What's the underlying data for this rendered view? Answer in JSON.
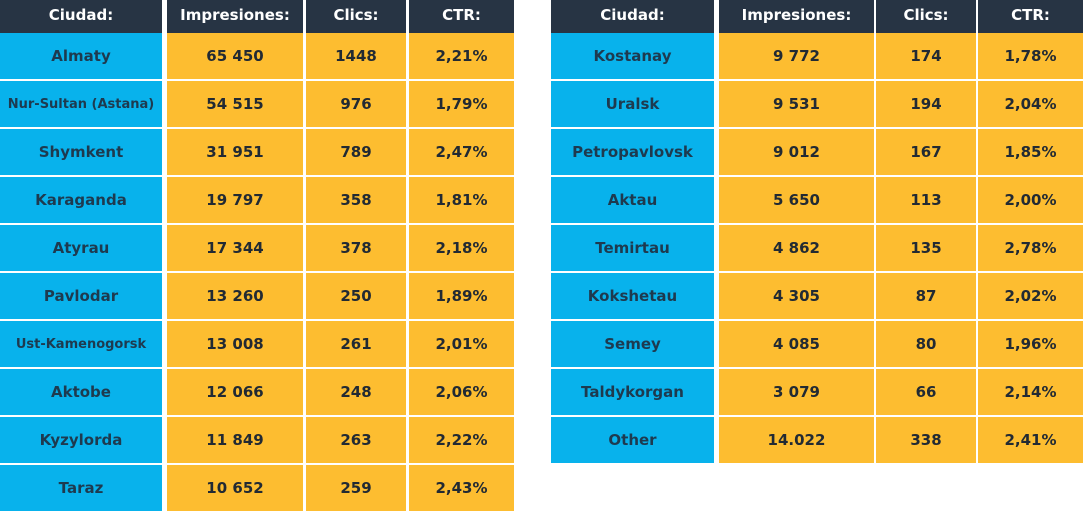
{
  "colors": {
    "header_bg": "#273444",
    "city_bg": "#08b2ec",
    "value_bg": "#fdbd30"
  },
  "table_left": {
    "headers": [
      "Ciudad:",
      "Impresiones:",
      "Clics:",
      "CTR:"
    ],
    "rows": [
      [
        "Almaty",
        "65 450",
        "1448",
        "2,21%"
      ],
      [
        "Nur-Sultan (Astana)",
        "54 515",
        "976",
        "1,79%"
      ],
      [
        "Shymkent",
        "31 951",
        "789",
        "2,47%"
      ],
      [
        "Karaganda",
        "19 797",
        "358",
        "1,81%"
      ],
      [
        "Atyrau",
        "17 344",
        "378",
        "2,18%"
      ],
      [
        "Pavlodar",
        "13 260",
        "250",
        "1,89%"
      ],
      [
        "Ust-Kamenogorsk",
        "13 008",
        "261",
        "2,01%"
      ],
      [
        "Aktobe",
        "12 066",
        "248",
        "2,06%"
      ],
      [
        "Kyzylorda",
        "11 849",
        "263",
        "2,22%"
      ],
      [
        "Taraz",
        "10 652",
        "259",
        "2,43%"
      ]
    ]
  },
  "table_right": {
    "headers": [
      "Ciudad:",
      "Impresiones:",
      "Clics:",
      "CTR:"
    ],
    "rows": [
      [
        "Kostanay",
        "9 772",
        "174",
        "1,78%"
      ],
      [
        "Uralsk",
        "9 531",
        "194",
        "2,04%"
      ],
      [
        "Petropavlovsk",
        "9 012",
        "167",
        "1,85%"
      ],
      [
        "Aktau",
        "5 650",
        "113",
        "2,00%"
      ],
      [
        "Temirtau",
        "4 862",
        "135",
        "2,78%"
      ],
      [
        "Kokshetau",
        "4 305",
        "87",
        "2,02%"
      ],
      [
        "Semey",
        "4 085",
        "80",
        "1,96%"
      ],
      [
        "Taldykorgan",
        "3 079",
        "66",
        "2,14%"
      ],
      [
        "Other",
        "14.022",
        "338",
        "2,41%"
      ]
    ]
  }
}
